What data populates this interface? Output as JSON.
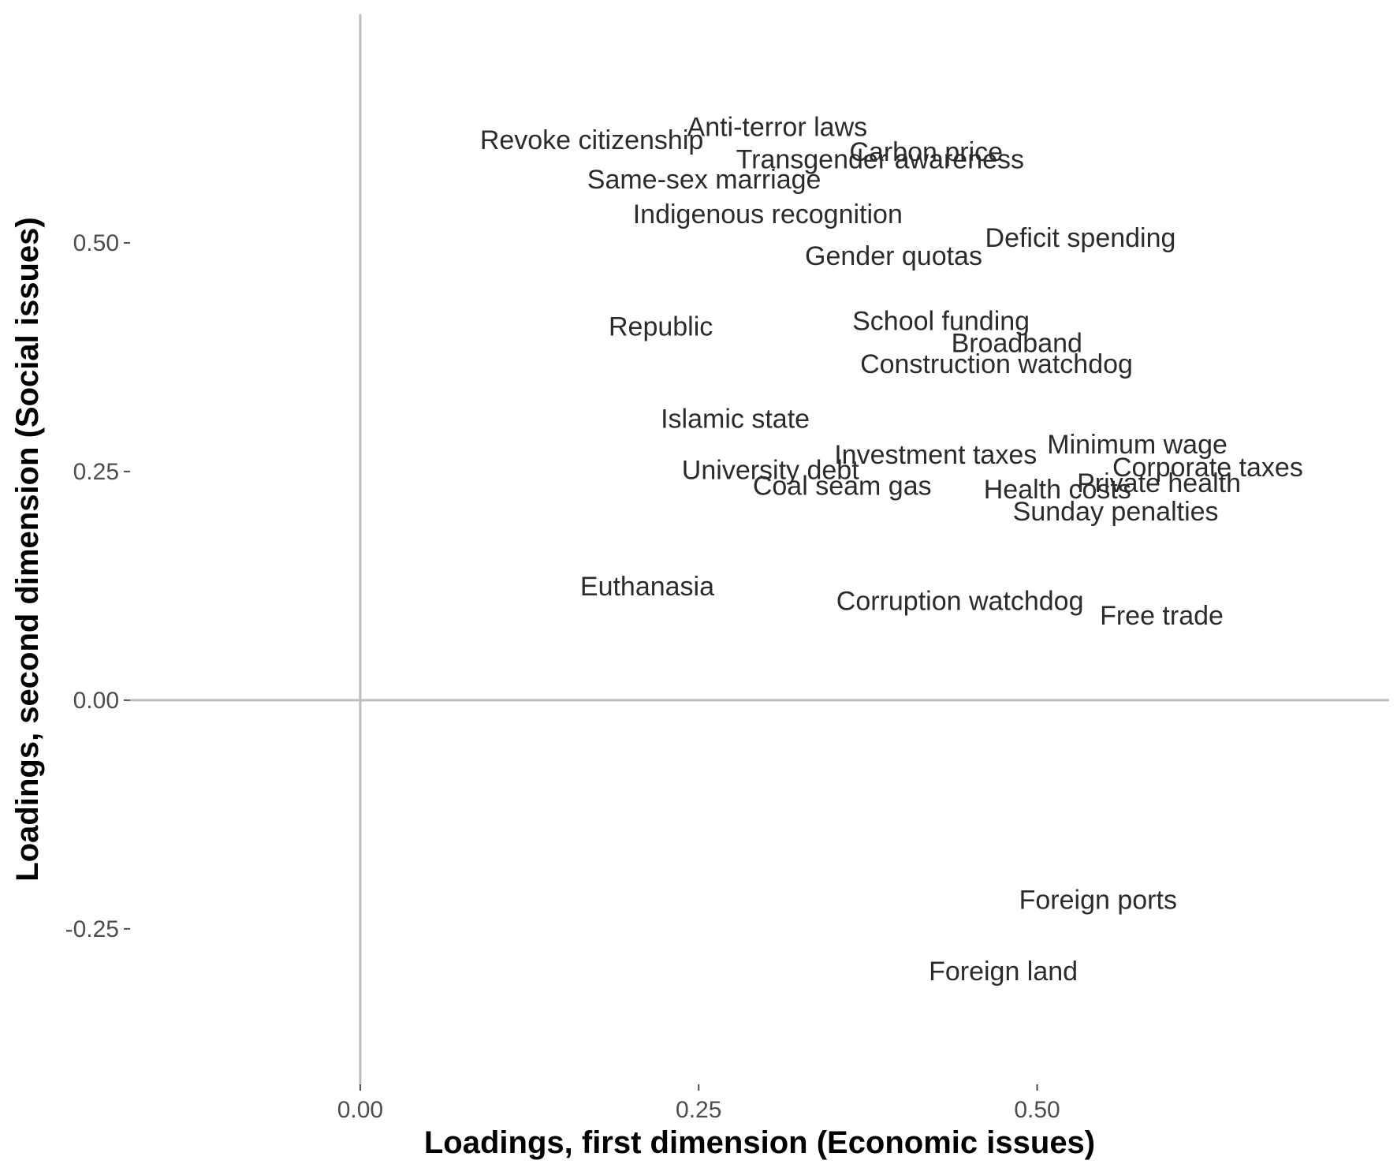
{
  "chart_data": {
    "type": "scatter",
    "title": "",
    "xlabel": "Loadings, first dimension (Economic issues)",
    "ylabel": "Loadings, second dimension (Social issues)",
    "xlim": [
      -0.17,
      0.76
    ],
    "ylim": [
      -0.42,
      0.75
    ],
    "x_ticks": [
      {
        "value": 0.0,
        "label": "0.00"
      },
      {
        "value": 0.25,
        "label": "0.25"
      },
      {
        "value": 0.5,
        "label": "0.50"
      }
    ],
    "y_ticks": [
      {
        "value": 0.5,
        "label": "0.50"
      },
      {
        "value": 0.25,
        "label": "0.25"
      },
      {
        "value": 0.0,
        "label": "0.00"
      },
      {
        "value": -0.25,
        "label": "-0.25"
      }
    ],
    "grid": false,
    "reference_lines": {
      "x": 0,
      "y": 0
    },
    "points": [
      {
        "label": "Anti-terror laws",
        "x": 0.308,
        "y": 0.627
      },
      {
        "label": "Revoke citizenship",
        "x": 0.171,
        "y": 0.613
      },
      {
        "label": "Carbon price",
        "x": 0.418,
        "y": 0.6
      },
      {
        "label": "Transgender awareness",
        "x": 0.384,
        "y": 0.592
      },
      {
        "label": "Same-sex marriage",
        "x": 0.254,
        "y": 0.57
      },
      {
        "label": "Indigenous recognition",
        "x": 0.301,
        "y": 0.532
      },
      {
        "label": "Deficit spending",
        "x": 0.532,
        "y": 0.506
      },
      {
        "label": "Gender quotas",
        "x": 0.394,
        "y": 0.486
      },
      {
        "label": "Republic",
        "x": 0.222,
        "y": 0.409
      },
      {
        "label": "School funding",
        "x": 0.429,
        "y": 0.415
      },
      {
        "label": "Broadband",
        "x": 0.485,
        "y": 0.391
      },
      {
        "label": "Construction watchdog",
        "x": 0.47,
        "y": 0.368
      },
      {
        "label": "Islamic state",
        "x": 0.277,
        "y": 0.308
      },
      {
        "label": "Minimum wage",
        "x": 0.574,
        "y": 0.28
      },
      {
        "label": "Investment taxes",
        "x": 0.425,
        "y": 0.269
      },
      {
        "label": "Corporate taxes",
        "x": 0.626,
        "y": 0.255
      },
      {
        "label": "University debt",
        "x": 0.303,
        "y": 0.252
      },
      {
        "label": "Private health",
        "x": 0.59,
        "y": 0.238
      },
      {
        "label": "Coal seam gas",
        "x": 0.356,
        "y": 0.235
      },
      {
        "label": "Health costs",
        "x": 0.515,
        "y": 0.231
      },
      {
        "label": "Sunday penalties",
        "x": 0.558,
        "y": 0.207
      },
      {
        "label": "Euthanasia",
        "x": 0.212,
        "y": 0.125
      },
      {
        "label": "Corruption watchdog",
        "x": 0.443,
        "y": 0.109
      },
      {
        "label": "Free trade",
        "x": 0.592,
        "y": 0.093
      },
      {
        "label": "Foreign ports",
        "x": 0.545,
        "y": -0.218
      },
      {
        "label": "Foreign land",
        "x": 0.475,
        "y": -0.296
      }
    ]
  }
}
